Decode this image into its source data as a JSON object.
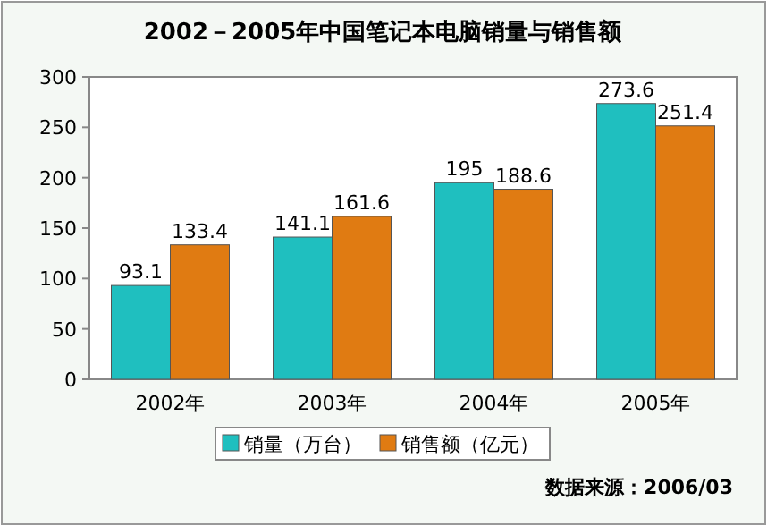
{
  "chart_data": {
    "type": "bar",
    "title": "2002－2005年中国笔记本电脑销量与销售额",
    "categories": [
      "2002年",
      "2003年",
      "2004年",
      "2005年"
    ],
    "series": [
      {
        "name": "销量（万台）",
        "color": "#1fbfbf",
        "values": [
          93.1,
          141.1,
          195,
          273.6
        ]
      },
      {
        "name": "销售额（亿元）",
        "color": "#e07b12",
        "values": [
          133.4,
          161.6,
          188.6,
          251.4
        ]
      }
    ],
    "ylim": [
      0,
      300
    ],
    "yticks": [
      0,
      50,
      100,
      150,
      200,
      250,
      300
    ],
    "data_labels": true,
    "legend": "bottom",
    "grid": false,
    "annotations": [
      "数据来源：2006/03"
    ]
  }
}
